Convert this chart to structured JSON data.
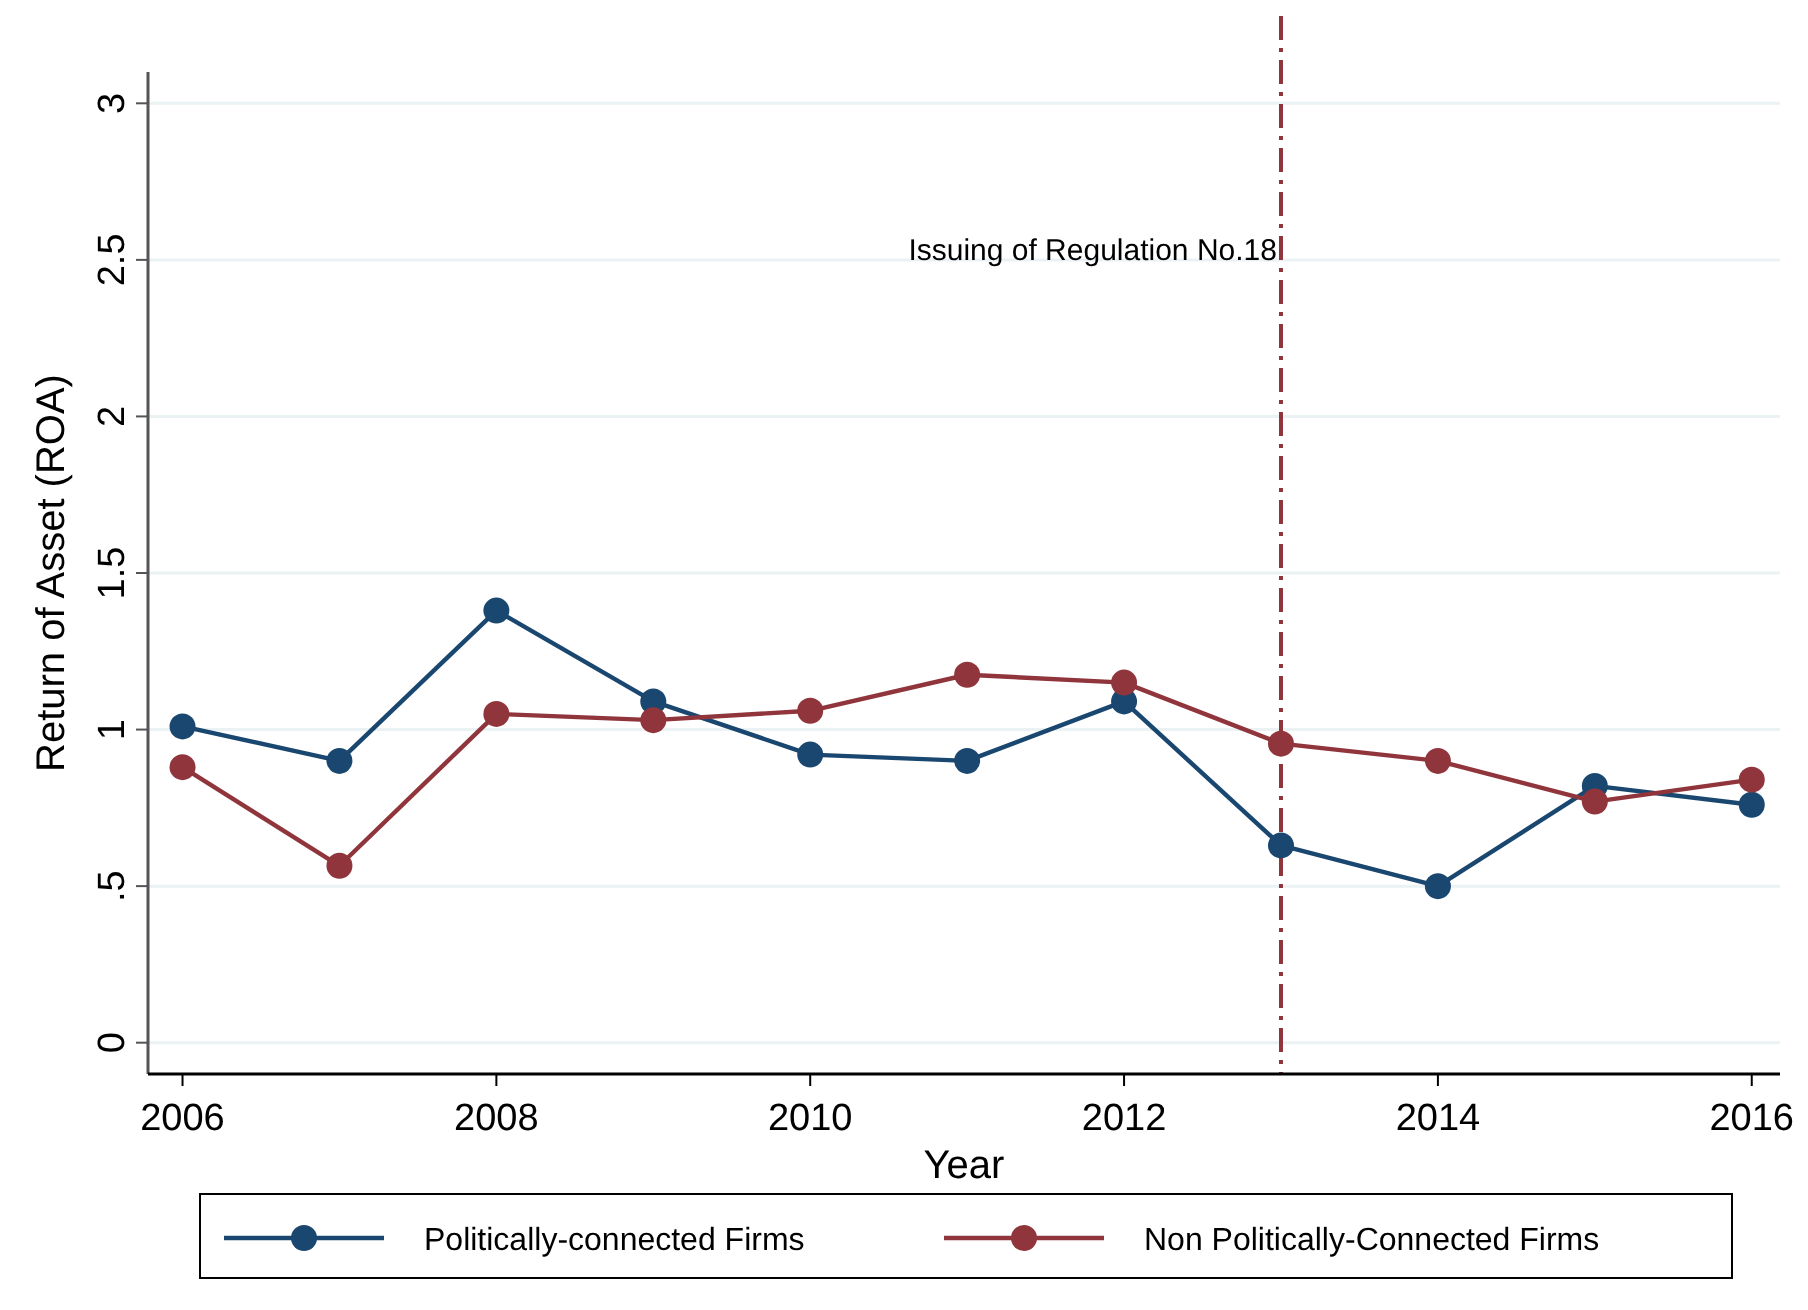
{
  "chart_data": {
    "type": "line",
    "xlabel": "Year",
    "ylabel": "Return of Asset (ROA)",
    "x": [
      2006,
      2007,
      2008,
      2009,
      2010,
      2011,
      2012,
      2013,
      2014,
      2015,
      2016
    ],
    "series": [
      {
        "name": "Politically-connected Firms",
        "color": "#1a476f",
        "values": [
          1.01,
          0.9,
          1.38,
          1.09,
          0.92,
          0.9,
          1.09,
          0.63,
          0.5,
          0.82,
          0.76
        ]
      },
      {
        "name": "Non Politically-Connected Firms",
        "color": "#90353b",
        "values": [
          0.88,
          0.565,
          1.05,
          1.03,
          1.06,
          1.175,
          1.15,
          0.955,
          0.9,
          0.77,
          0.84
        ]
      }
    ],
    "xlim": [
      2005.78,
      2016.18
    ],
    "ylim": [
      -0.1,
      3.1
    ],
    "xticks": [
      2006,
      2008,
      2010,
      2012,
      2014,
      2016
    ],
    "yticks": [
      0,
      {
        "value": 0.5,
        "label": ".5"
      },
      1,
      1.5,
      2,
      2.5,
      3
    ],
    "ref_lines": [
      {
        "axis": "x",
        "value": 2013,
        "label": "Issuing of Regulation No.18",
        "color": "#90353b",
        "line_style": "dashdot"
      }
    ],
    "grid": "y",
    "legend": "bottom",
    "marker": "circle",
    "line_style": "solid"
  }
}
